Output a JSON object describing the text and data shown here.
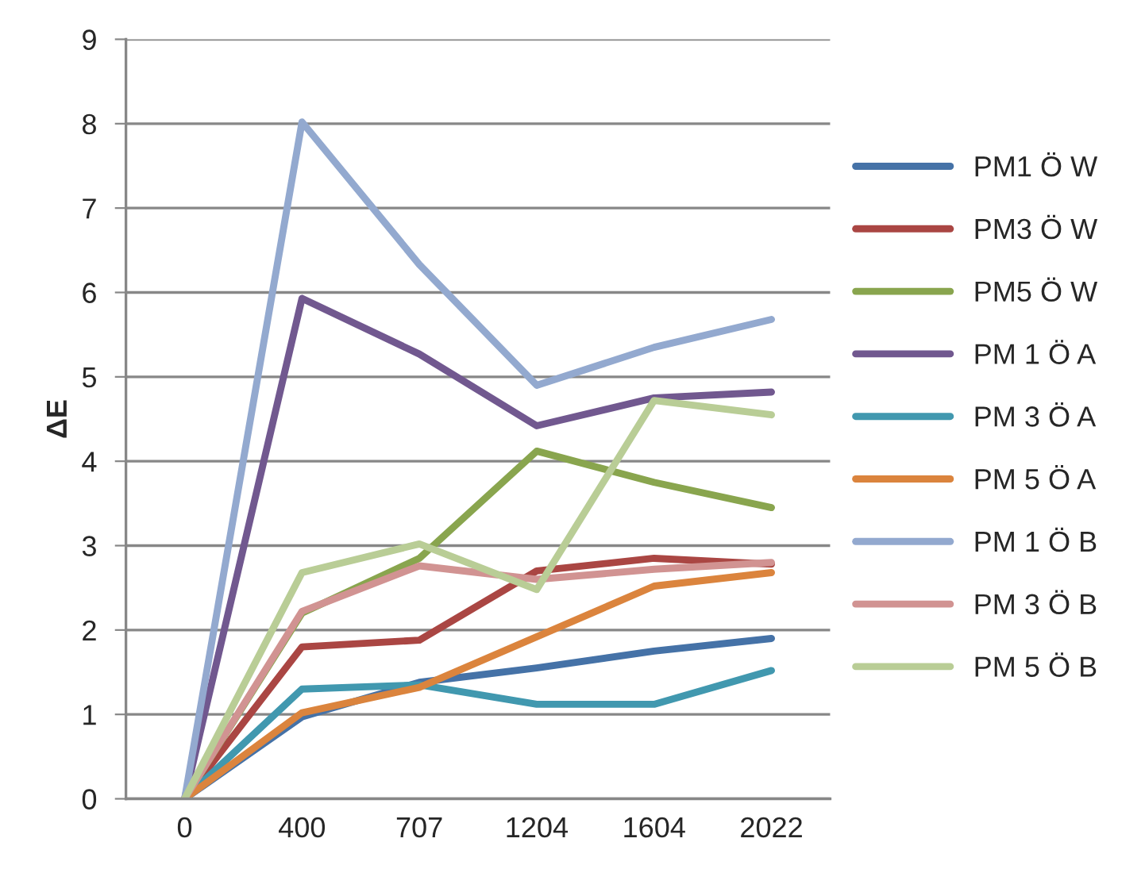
{
  "chart_data": {
    "type": "line",
    "ylabel": "ΔE",
    "categories": [
      "0",
      "400",
      "707",
      "1204",
      "1604",
      "2022"
    ],
    "ylim": [
      0,
      9
    ],
    "yticks": [
      0,
      1,
      2,
      3,
      4,
      5,
      6,
      7,
      8,
      9
    ],
    "grid": "y",
    "legend": "right",
    "marker": "none",
    "line_style": "solid",
    "series": [
      {
        "name": "PM1 Ö W",
        "color": "#4572a7",
        "values": [
          0,
          0.97,
          1.38,
          1.55,
          1.75,
          1.9
        ]
      },
      {
        "name": "PM3 Ö W",
        "color": "#aa4643",
        "values": [
          0,
          1.8,
          1.88,
          2.7,
          2.85,
          2.78
        ]
      },
      {
        "name": "PM5 Ö W",
        "color": "#89a54e",
        "values": [
          0,
          2.2,
          2.85,
          4.12,
          3.75,
          3.45
        ]
      },
      {
        "name": "PM 1 Ö A",
        "color": "#71588f",
        "values": [
          0,
          5.93,
          5.27,
          4.42,
          4.75,
          4.82
        ]
      },
      {
        "name": "PM 3 Ö A",
        "color": "#4198af",
        "values": [
          0,
          1.3,
          1.35,
          1.12,
          1.12,
          1.52
        ]
      },
      {
        "name": "PM 5 Ö A",
        "color": "#db843d",
        "values": [
          0,
          1.02,
          1.32,
          1.92,
          2.52,
          2.68
        ]
      },
      {
        "name": "PM 1 Ö B",
        "color": "#93a9cf",
        "values": [
          0,
          8.02,
          6.33,
          4.9,
          5.35,
          5.68
        ]
      },
      {
        "name": "PM 3 Ö B",
        "color": "#d19392",
        "values": [
          0,
          2.22,
          2.76,
          2.6,
          2.72,
          2.8
        ]
      },
      {
        "name": "PM 5 Ö B",
        "color": "#b9cd96",
        "values": [
          0,
          2.68,
          3.02,
          2.48,
          4.72,
          4.55
        ]
      }
    ]
  }
}
